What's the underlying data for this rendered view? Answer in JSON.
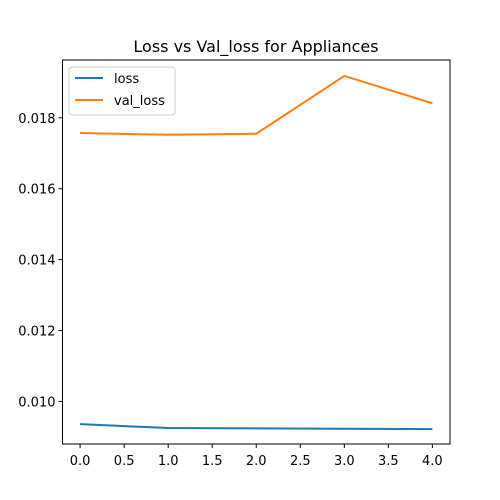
{
  "chart_data": {
    "type": "line",
    "title": "Loss vs Val_loss for Appliances",
    "xlabel": "",
    "ylabel": "",
    "x": [
      0,
      1,
      2,
      3,
      4
    ],
    "xlim": [
      -0.2,
      4.2
    ],
    "ylim": [
      0.0088,
      0.01963
    ],
    "xticks": [
      0.0,
      0.5,
      1.0,
      1.5,
      2.0,
      2.5,
      3.0,
      3.5,
      4.0
    ],
    "xtick_labels": [
      "0.0",
      "0.5",
      "1.0",
      "1.5",
      "2.0",
      "2.5",
      "3.0",
      "3.5",
      "4.0"
    ],
    "yticks": [
      0.01,
      0.012,
      0.014,
      0.016,
      0.018
    ],
    "ytick_labels": [
      "0.010",
      "0.012",
      "0.014",
      "0.016",
      "0.018"
    ],
    "grid": false,
    "legend_position": "top-left",
    "series": [
      {
        "name": "loss",
        "color": "#1f77b4",
        "values": [
          0.00936,
          0.00925,
          0.00924,
          0.00923,
          0.00922
        ]
      },
      {
        "name": "val_loss",
        "color": "#ff7f0e",
        "values": [
          0.01757,
          0.01752,
          0.01755,
          0.01918,
          0.01841
        ]
      }
    ]
  }
}
